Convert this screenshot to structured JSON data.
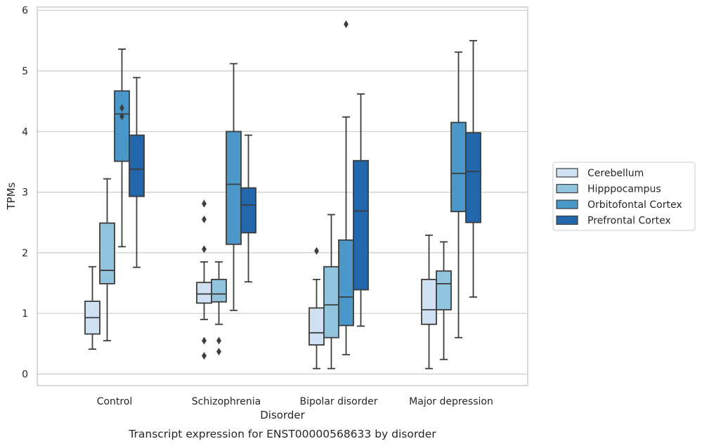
{
  "chart_data": {
    "type": "box",
    "caption": "Transcript expression for ENST00000568633 by disorder",
    "xlabel": "Disorder",
    "ylabel": "TPMs",
    "ylim": [
      -0.18,
      6.06
    ],
    "yticks": [
      0,
      1,
      2,
      3,
      4,
      5,
      6
    ],
    "grid": "horizontal",
    "legend_position": "right",
    "categories": [
      "Control",
      "Schizophrenia",
      "Bipolar disorder",
      "Major depression"
    ],
    "series": [
      {
        "name": "Cerebellum",
        "color": "#cfe1f2",
        "boxes": [
          {
            "min": 0.41,
            "q1": 0.66,
            "median": 0.93,
            "q3": 1.2,
            "max": 1.77,
            "outliers": []
          },
          {
            "min": 0.9,
            "q1": 1.17,
            "median": 1.32,
            "q3": 1.51,
            "max": 1.85,
            "outliers": [
              0.3,
              0.55,
              2.06,
              2.55,
              2.81
            ]
          },
          {
            "min": 0.09,
            "q1": 0.48,
            "median": 0.68,
            "q3": 1.09,
            "max": 1.56,
            "outliers": [
              2.03
            ]
          },
          {
            "min": 0.09,
            "q1": 0.82,
            "median": 1.06,
            "q3": 1.56,
            "max": 2.29,
            "outliers": []
          }
        ]
      },
      {
        "name": "Hipppocampus",
        "color": "#93c4de",
        "boxes": [
          {
            "min": 0.55,
            "q1": 1.49,
            "median": 1.71,
            "q3": 2.49,
            "max": 3.22,
            "outliers": []
          },
          {
            "min": 0.82,
            "q1": 1.19,
            "median": 1.32,
            "q3": 1.56,
            "max": 1.85,
            "outliers": [
              0.37,
              0.55
            ]
          },
          {
            "min": 0.09,
            "q1": 0.6,
            "median": 1.14,
            "q3": 1.77,
            "max": 2.63,
            "outliers": []
          },
          {
            "min": 0.24,
            "q1": 1.06,
            "median": 1.49,
            "q3": 1.7,
            "max": 2.18,
            "outliers": []
          }
        ]
      },
      {
        "name": "Orbitofontal Cortex",
        "color": "#4a98c9",
        "boxes": [
          {
            "min": 2.1,
            "q1": 3.51,
            "median": 4.29,
            "q3": 4.67,
            "max": 5.36,
            "outliers": [
              4.25,
              4.39
            ]
          },
          {
            "min": 1.05,
            "q1": 2.14,
            "median": 3.13,
            "q3": 4.0,
            "max": 5.12,
            "outliers": []
          },
          {
            "min": 0.32,
            "q1": 0.8,
            "median": 1.27,
            "q3": 2.21,
            "max": 4.24,
            "outliers": [
              5.77
            ]
          },
          {
            "min": 0.6,
            "q1": 2.68,
            "median": 3.31,
            "q3": 4.15,
            "max": 5.31,
            "outliers": []
          }
        ]
      },
      {
        "name": "Prefrontal Cortex",
        "color": "#2266ac",
        "boxes": [
          {
            "min": 1.76,
            "q1": 2.93,
            "median": 3.38,
            "q3": 3.94,
            "max": 4.89,
            "outliers": []
          },
          {
            "min": 1.52,
            "q1": 2.33,
            "median": 2.79,
            "q3": 3.07,
            "max": 3.94,
            "outliers": []
          },
          {
            "min": 0.79,
            "q1": 1.39,
            "median": 2.69,
            "q3": 3.52,
            "max": 4.62,
            "outliers": []
          },
          {
            "min": 1.27,
            "q1": 2.5,
            "median": 3.34,
            "q3": 3.98,
            "max": 5.5,
            "outliers": []
          }
        ]
      }
    ]
  }
}
